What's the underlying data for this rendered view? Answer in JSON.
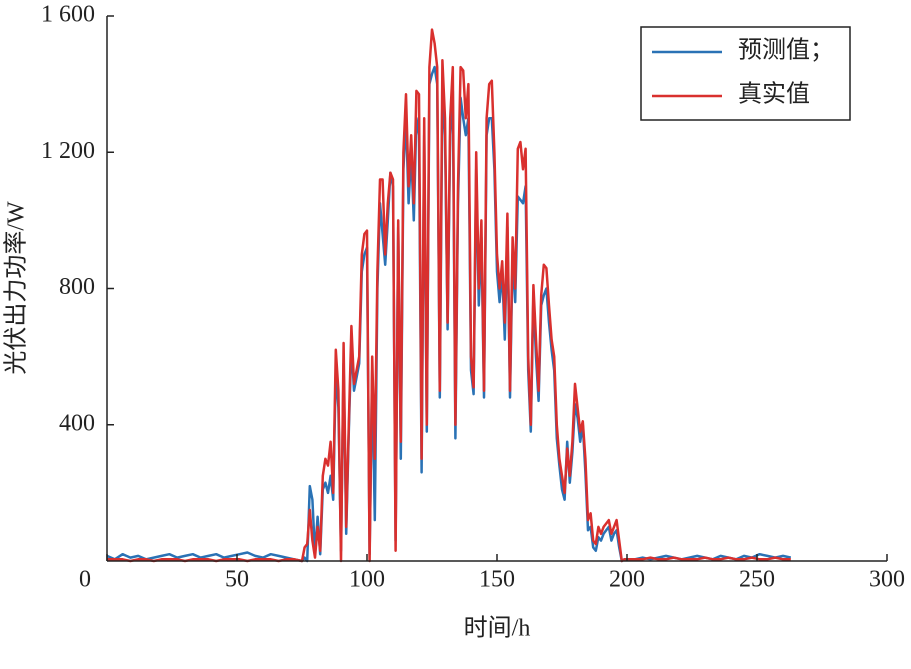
{
  "chart_data": {
    "type": "line",
    "xlabel": "时间/h",
    "ylabel": "光伏出力功率/W",
    "xlim": [
      0,
      300
    ],
    "xticks": [
      0,
      50,
      100,
      150,
      200,
      250,
      300
    ],
    "ylim": [
      0,
      1600
    ],
    "yticks": [
      400,
      800,
      {
        "value": 1200,
        "label": "1 200"
      },
      {
        "value": 1600,
        "label": "1 600"
      }
    ],
    "legend": "upper right",
    "x": [
      0,
      3,
      6,
      9,
      12,
      15,
      18,
      21,
      24,
      27,
      30,
      33,
      36,
      39,
      42,
      45,
      48,
      51,
      54,
      57,
      60,
      63,
      66,
      69,
      72,
      75,
      76,
      77,
      78,
      79,
      80,
      81,
      82,
      83,
      84,
      85,
      86,
      87,
      88,
      89,
      90,
      91,
      92,
      93,
      94,
      95,
      96,
      97,
      98,
      99,
      100,
      101,
      102,
      103,
      104,
      105,
      106,
      107,
      108,
      109,
      110,
      111,
      112,
      113,
      114,
      115,
      116,
      117,
      118,
      119,
      120,
      121,
      122,
      123,
      124,
      125,
      126,
      127,
      128,
      129,
      130,
      131,
      132,
      133,
      134,
      135,
      136,
      137,
      138,
      139,
      140,
      141,
      142,
      143,
      144,
      145,
      146,
      147,
      148,
      149,
      150,
      151,
      152,
      153,
      154,
      155,
      156,
      157,
      158,
      159,
      160,
      161,
      162,
      163,
      164,
      165,
      166,
      167,
      168,
      169,
      170,
      171,
      172,
      173,
      174,
      175,
      176,
      177,
      178,
      179,
      180,
      181,
      182,
      183,
      184,
      185,
      186,
      187,
      188,
      189,
      190,
      191,
      192,
      193,
      194,
      195,
      196,
      197,
      198,
      199,
      200,
      203,
      206,
      209,
      212,
      215,
      218,
      221,
      224,
      227,
      230,
      233,
      236,
      239,
      242,
      245,
      248,
      251,
      254,
      257,
      260,
      263
    ],
    "series": [
      {
        "name": "预测值；",
        "color": "#2a72b5",
        "values": [
          15,
          5,
          20,
          10,
          15,
          5,
          10,
          15,
          20,
          10,
          15,
          20,
          10,
          15,
          20,
          10,
          15,
          20,
          25,
          15,
          10,
          20,
          15,
          10,
          5,
          0,
          10,
          0,
          220,
          180,
          20,
          130,
          20,
          210,
          230,
          200,
          250,
          180,
          560,
          450,
          30,
          580,
          80,
          380,
          640,
          500,
          540,
          580,
          850,
          900,
          920,
          20,
          560,
          120,
          800,
          1050,
          960,
          870,
          1000,
          1140,
          1100,
          60,
          980,
          300,
          1150,
          1300,
          1050,
          1200,
          1000,
          1300,
          1250,
          260,
          1250,
          380,
          1400,
          1430,
          1450,
          1400,
          480,
          1380,
          1250,
          680,
          1250,
          1380,
          360,
          1050,
          1360,
          1300,
          1250,
          1300,
          560,
          490,
          1150,
          750,
          950,
          480,
          1250,
          1300,
          1300,
          1150,
          850,
          760,
          850,
          650,
          980,
          480,
          900,
          760,
          1070,
          1060,
          1050,
          1100,
          560,
          380,
          780,
          600,
          470,
          750,
          780,
          800,
          700,
          620,
          560,
          360,
          280,
          210,
          180,
          350,
          230,
          320,
          460,
          420,
          350,
          400,
          260,
          90,
          100,
          40,
          30,
          70,
          60,
          80,
          90,
          100,
          60,
          80,
          90,
          40,
          0,
          5,
          5,
          5,
          10,
          5,
          10,
          15,
          10,
          5,
          10,
          15,
          10,
          5,
          15,
          10,
          5,
          15,
          10,
          20,
          15,
          10,
          15,
          10
        ]
      },
      {
        "name": "真实值",
        "color": "#d9302e",
        "values": [
          5,
          5,
          5,
          0,
          5,
          5,
          0,
          5,
          5,
          5,
          0,
          5,
          5,
          5,
          0,
          5,
          5,
          5,
          0,
          5,
          5,
          5,
          0,
          5,
          5,
          0,
          40,
          50,
          150,
          60,
          10,
          100,
          30,
          250,
          300,
          280,
          350,
          200,
          620,
          500,
          0,
          640,
          100,
          400,
          690,
          520,
          560,
          600,
          900,
          960,
          970,
          0,
          600,
          300,
          850,
          1120,
          1120,
          900,
          1050,
          1140,
          1120,
          30,
          1000,
          350,
          1200,
          1370,
          1100,
          1250,
          1050,
          1380,
          1370,
          300,
          1300,
          400,
          1450,
          1560,
          1520,
          1450,
          500,
          1470,
          1300,
          700,
          1300,
          1450,
          400,
          1100,
          1450,
          1440,
          1300,
          1400,
          600,
          510,
          1200,
          800,
          1000,
          500,
          1300,
          1400,
          1410,
          1200,
          900,
          800,
          880,
          700,
          1020,
          500,
          950,
          800,
          1210,
          1230,
          1150,
          1210,
          600,
          400,
          810,
          650,
          500,
          780,
          870,
          860,
          750,
          650,
          600,
          400,
          300,
          250,
          200,
          330,
          250,
          350,
          520,
          450,
          380,
          410,
          300,
          120,
          140,
          60,
          50,
          100,
          80,
          100,
          110,
          120,
          80,
          100,
          120,
          60,
          0,
          5,
          5,
          5,
          5,
          10,
          5,
          5,
          10,
          5,
          5,
          5,
          10,
          5,
          5,
          10,
          5,
          5,
          10,
          5,
          5,
          10,
          5,
          5
        ]
      }
    ]
  }
}
